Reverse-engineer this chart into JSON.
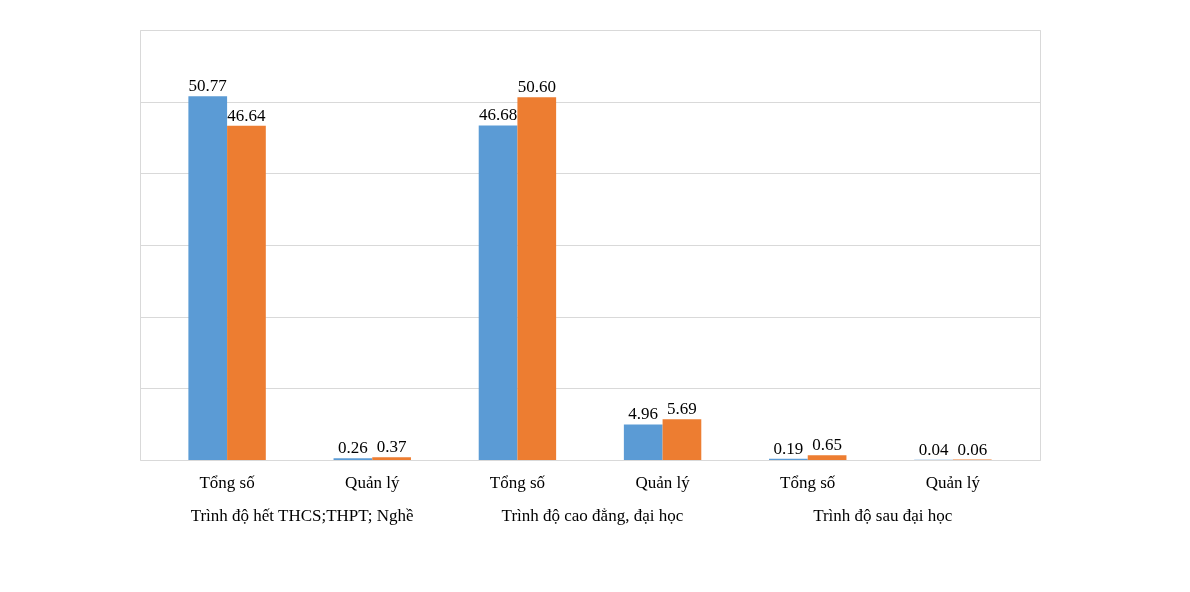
{
  "chart_data": {
    "type": "bar",
    "categories": [
      "Tổng số",
      "Quản lý",
      "Tổng số",
      "Quản lý",
      "Tổng số",
      "Quản lý"
    ],
    "series": [
      {
        "color": "#5b9bd5",
        "values": [
          50.77,
          0.26,
          46.68,
          4.96,
          0.19,
          0.04
        ],
        "value_labels": [
          "50.77",
          "0.26",
          "46.68",
          "4.96",
          "0.19",
          "0.04"
        ]
      },
      {
        "color": "#ed7d31",
        "values": [
          46.64,
          0.37,
          50.6,
          5.69,
          0.65,
          0.06
        ],
        "value_labels": [
          "46.64",
          "0.37",
          "50.60",
          "5.69",
          "0.65",
          "0.06"
        ]
      }
    ],
    "annotations": [
      "Trình độ hết THCS;THPT;  Nghề",
      "Trình độ cao đẳng, đại học",
      "Trình độ sau đại học"
    ],
    "ylim": [
      0,
      60
    ],
    "yticks": [
      {
        "value": 0,
        "label": null
      },
      {
        "value": 10,
        "label": null
      },
      {
        "value": 20,
        "label": null
      },
      {
        "value": 30,
        "label": null
      },
      {
        "value": 40,
        "label": null
      },
      {
        "value": 50,
        "label": null
      },
      {
        "value": 60,
        "label": null
      }
    ],
    "grid": "y",
    "tick_labels": "x",
    "legend": false
  }
}
